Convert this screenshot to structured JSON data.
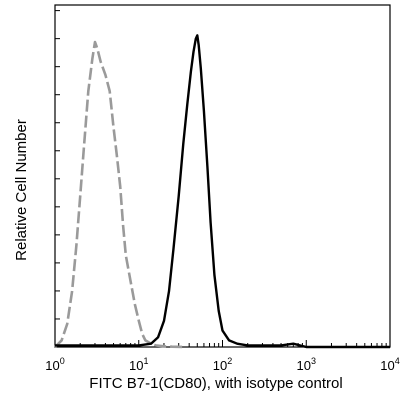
{
  "chart_data": {
    "type": "line",
    "title": "",
    "xlabel": "FITC  B7-1(CD80),  with isotype control",
    "ylabel": "Relative Cell Number",
    "x_scale": "log",
    "xlim": [
      1,
      10000
    ],
    "ylim": [
      0,
      100
    ],
    "x_ticks": [
      {
        "base": "10",
        "exp": "0",
        "value": 1
      },
      {
        "base": "10",
        "exp": "1",
        "value": 10
      },
      {
        "base": "10",
        "exp": "2",
        "value": 100
      },
      {
        "base": "10",
        "exp": "3",
        "value": 1000
      },
      {
        "base": "10",
        "exp": "4",
        "value": 10000
      }
    ],
    "y_ticks_labeled": false,
    "grid": false,
    "legend": "none",
    "series": [
      {
        "style": "dashed",
        "color": "#9a9a9a",
        "x": [
          1.0,
          1.2,
          1.4,
          1.6,
          1.8,
          2.0,
          2.2,
          2.5,
          2.8,
          3.0,
          3.2,
          3.5,
          4.0,
          4.5,
          5.0,
          5.5,
          6.0,
          6.5,
          7.0,
          8.0,
          9.0,
          10.0,
          11.0,
          12.0,
          14.0,
          16.0,
          20.0,
          25.0,
          35.0
        ],
        "y": [
          0,
          2,
          7,
          17,
          31,
          46,
          60,
          78,
          88,
          93,
          91,
          87,
          83,
          78,
          67,
          58,
          49,
          37,
          28,
          20,
          13,
          8,
          4,
          2,
          1,
          0.5,
          0.2,
          0.1,
          0
        ]
      },
      {
        "style": "solid",
        "color": "#000000",
        "x": [
          1.0,
          10.0,
          14.0,
          17.0,
          20.0,
          23.0,
          26.0,
          30.0,
          34.0,
          38.0,
          42.0,
          45.0,
          48.0,
          50.0,
          52.0,
          55.0,
          60.0,
          66.0,
          72.0,
          80.0,
          90.0,
          100.0,
          120.0,
          150.0,
          200.0,
          300.0,
          500.0,
          700.0,
          1000.0,
          10000.0
        ],
        "y": [
          0.5,
          0.5,
          1,
          3,
          8,
          17,
          30,
          46,
          62,
          74,
          84,
          90,
          94,
          95,
          92,
          85,
          72,
          55,
          38,
          22,
          11,
          5,
          2,
          1,
          0.5,
          0.5,
          0.5,
          1,
          0,
          0
        ]
      }
    ]
  }
}
